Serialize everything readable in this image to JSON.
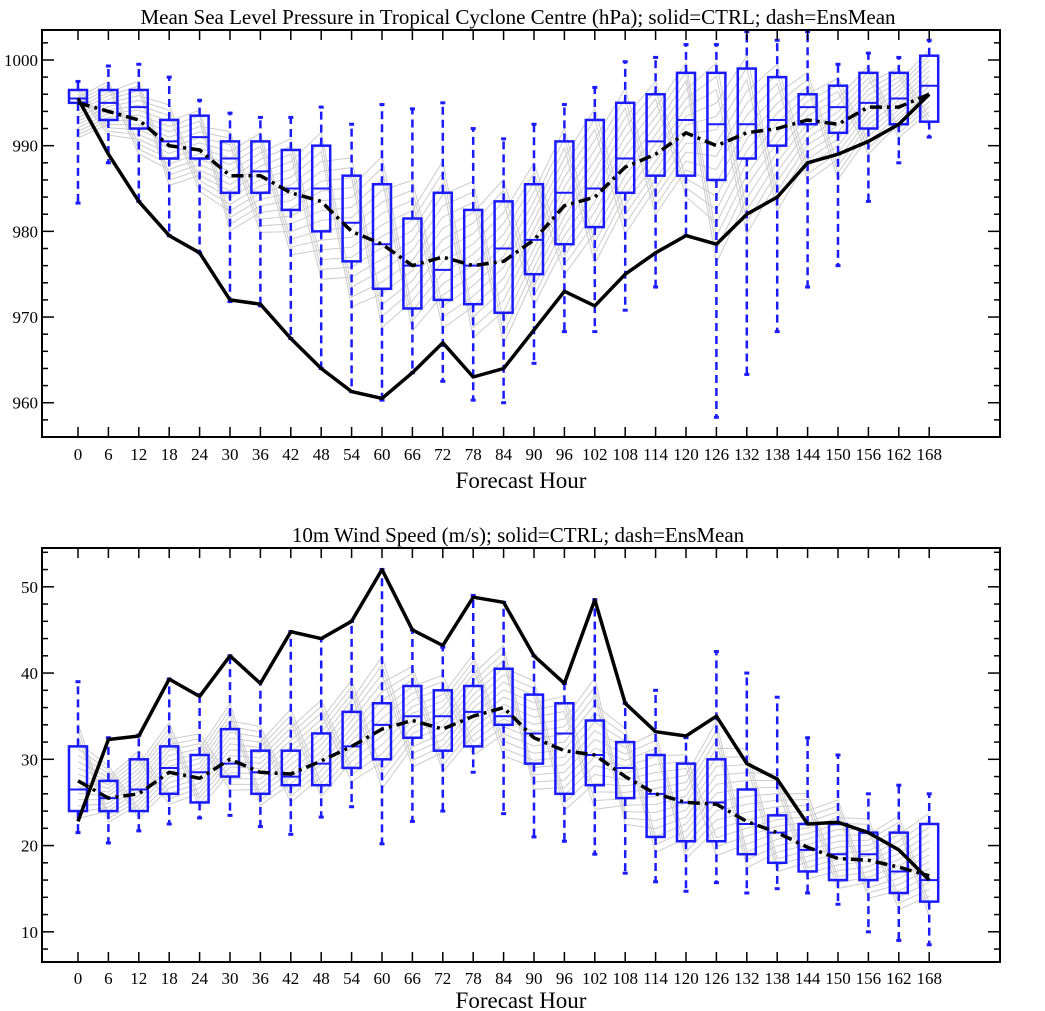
{
  "colors": {
    "box": "#1a1aff",
    "ctrl": "#000000",
    "members": "#cccccc",
    "axis": "#000000"
  },
  "chart_data": [
    {
      "type": "box",
      "title": "Mean Sea Level Pressure in Tropical Cyclone Centre (hPa); solid=CTRL; dash=EnsMean",
      "xlabel": "Forecast Hour",
      "ylabel": "",
      "ylim": [
        956,
        1003.5
      ],
      "yticks": [
        960,
        970,
        980,
        990,
        1000
      ],
      "categories": [
        "0",
        "6",
        "12",
        "18",
        "24",
        "30",
        "36",
        "42",
        "48",
        "54",
        "60",
        "66",
        "72",
        "78",
        "84",
        "90",
        "96",
        "102",
        "108",
        "114",
        "120",
        "126",
        "132",
        "138",
        "144",
        "150",
        "156",
        "162",
        "168"
      ],
      "boxes": {
        "whisker_low": [
          983.3,
          988.0,
          983.5,
          979.5,
          977.5,
          971.8,
          971.3,
          967.5,
          964.0,
          961.3,
          960.3,
          963.5,
          962.5,
          960.3,
          960.0,
          964.6,
          968.3,
          968.3,
          970.8,
          973.5,
          979.5,
          958.3,
          963.3,
          968.3,
          973.5,
          976.0,
          983.5,
          988.0,
          991.0
        ],
        "q1": [
          995.0,
          993.0,
          992.0,
          988.5,
          988.5,
          984.5,
          984.5,
          982.5,
          980.0,
          976.5,
          973.3,
          971.0,
          972.0,
          971.5,
          970.5,
          975.0,
          978.5,
          980.5,
          984.5,
          986.5,
          986.5,
          986.0,
          988.5,
          990.0,
          992.5,
          991.5,
          992.0,
          992.5,
          992.8
        ],
        "median": [
          995.5,
          995.0,
          994.5,
          990.5,
          991.0,
          988.5,
          987.0,
          985.0,
          985.0,
          981.0,
          978.5,
          976.0,
          975.5,
          976.0,
          978.0,
          979.0,
          984.5,
          985.0,
          988.5,
          990.5,
          993.0,
          992.5,
          992.5,
          993.0,
          994.5,
          994.5,
          995.0,
          995.5,
          997.0
        ],
        "q3": [
          996.5,
          996.5,
          996.5,
          993.0,
          993.5,
          990.5,
          990.5,
          989.5,
          990.0,
          986.5,
          985.5,
          981.5,
          984.5,
          982.5,
          983.5,
          985.5,
          990.5,
          993.0,
          995.0,
          996.0,
          998.5,
          998.5,
          999.0,
          998.0,
          996.0,
          997.0,
          998.5,
          998.5,
          1000.5
        ],
        "whisker_high": [
          997.5,
          999.3,
          999.5,
          998.0,
          995.3,
          993.8,
          993.3,
          993.3,
          994.5,
          992.5,
          994.8,
          994.3,
          995.0,
          992.0,
          990.8,
          992.5,
          994.8,
          996.8,
          999.8,
          1000.3,
          1001.8,
          1001.8,
          1003.3,
          1002.3,
          1003.3,
          999.5,
          1000.8,
          1000.3,
          1002.3
        ]
      },
      "series": [
        {
          "name": "CTRL",
          "style": "solid",
          "values": [
            995.5,
            989.0,
            983.5,
            979.5,
            977.5,
            972.0,
            971.5,
            967.5,
            964.0,
            961.3,
            960.5,
            963.5,
            967.0,
            963.0,
            964.0,
            968.5,
            973.0,
            971.3,
            975.0,
            977.5,
            979.5,
            978.5,
            982.0,
            984.0,
            988.0,
            989.0,
            990.5,
            992.5,
            996.0
          ]
        },
        {
          "name": "EnsMean",
          "style": "dash-dot",
          "values": [
            995.0,
            994.0,
            993.0,
            990.0,
            989.5,
            986.5,
            986.5,
            984.5,
            983.5,
            980.0,
            978.5,
            976.0,
            977.0,
            976.0,
            976.5,
            979.0,
            983.0,
            984.0,
            987.5,
            989.0,
            991.5,
            990.0,
            991.5,
            992.0,
            993.0,
            992.5,
            994.5,
            994.5,
            996.0
          ]
        }
      ],
      "member_count_shown": 16
    },
    {
      "type": "box",
      "title": "10m Wind Speed (m/s); solid=CTRL; dash=EnsMean",
      "xlabel": "Forecast Hour",
      "ylabel": "",
      "ylim": [
        6.5,
        54.5
      ],
      "yticks": [
        10,
        20,
        30,
        40,
        50
      ],
      "categories": [
        "0",
        "6",
        "12",
        "18",
        "24",
        "30",
        "36",
        "42",
        "48",
        "54",
        "60",
        "66",
        "72",
        "78",
        "84",
        "90",
        "96",
        "102",
        "108",
        "114",
        "120",
        "126",
        "132",
        "138",
        "144",
        "150",
        "156",
        "162",
        "168"
      ],
      "boxes": {
        "whisker_low": [
          21.5,
          20.3,
          21.7,
          22.5,
          23.2,
          23.5,
          22.2,
          21.3,
          23.3,
          24.5,
          20.2,
          22.8,
          24.0,
          28.5,
          23.7,
          21.0,
          20.5,
          19.0,
          16.8,
          15.8,
          14.7,
          15.7,
          14.5,
          15.0,
          14.5,
          13.2,
          10.0,
          9.0,
          8.5
        ],
        "q1": [
          24.0,
          24.0,
          24.0,
          26.0,
          25.0,
          28.0,
          26.0,
          27.0,
          27.0,
          29.0,
          30.0,
          32.5,
          31.0,
          31.5,
          34.0,
          29.5,
          26.0,
          27.0,
          25.5,
          21.0,
          20.5,
          20.5,
          19.0,
          18.0,
          17.0,
          16.0,
          16.0,
          14.5,
          13.5
        ],
        "median": [
          26.5,
          25.5,
          26.5,
          29.0,
          28.5,
          29.5,
          28.5,
          28.0,
          29.5,
          31.5,
          34.0,
          35.0,
          35.0,
          35.5,
          35.0,
          33.0,
          33.0,
          30.5,
          29.0,
          26.0,
          25.0,
          25.0,
          22.5,
          21.5,
          19.5,
          19.0,
          19.0,
          17.0,
          16.0
        ],
        "q3": [
          31.5,
          27.5,
          30.0,
          31.5,
          30.5,
          33.5,
          31.0,
          31.0,
          33.0,
          35.5,
          36.5,
          38.5,
          38.0,
          38.5,
          40.5,
          37.5,
          36.5,
          34.5,
          32.0,
          30.5,
          29.5,
          30.0,
          26.5,
          23.5,
          22.5,
          22.5,
          21.5,
          21.5,
          22.5
        ],
        "whisker_high": [
          39.0,
          32.5,
          32.8,
          39.3,
          37.5,
          42.0,
          39.0,
          44.8,
          44.0,
          46.0,
          52.0,
          45.0,
          43.0,
          49.0,
          48.2,
          42.0,
          38.8,
          48.5,
          36.5,
          38.0,
          32.5,
          42.5,
          40.0,
          37.2,
          32.5,
          30.5,
          26.0,
          27.0,
          26.0
        ]
      },
      "series": [
        {
          "name": "CTRL",
          "style": "solid",
          "values": [
            22.8,
            32.3,
            32.7,
            39.3,
            37.3,
            42.0,
            38.8,
            44.8,
            44.0,
            46.0,
            52.0,
            45.0,
            43.2,
            48.8,
            48.2,
            42.0,
            38.8,
            48.5,
            36.5,
            33.2,
            32.7,
            35.0,
            29.5,
            27.7,
            22.5,
            22.7,
            21.5,
            19.5,
            16.0
          ]
        },
        {
          "name": "EnsMean",
          "style": "dash-dot",
          "values": [
            27.5,
            25.5,
            26.0,
            28.5,
            27.8,
            30.0,
            28.5,
            28.3,
            29.8,
            31.5,
            33.5,
            34.5,
            33.5,
            35.0,
            36.0,
            32.5,
            31.0,
            30.5,
            28.0,
            26.0,
            25.0,
            24.8,
            22.8,
            21.5,
            19.8,
            18.5,
            18.3,
            17.5,
            16.5
          ]
        }
      ],
      "member_count_shown": 16
    }
  ]
}
